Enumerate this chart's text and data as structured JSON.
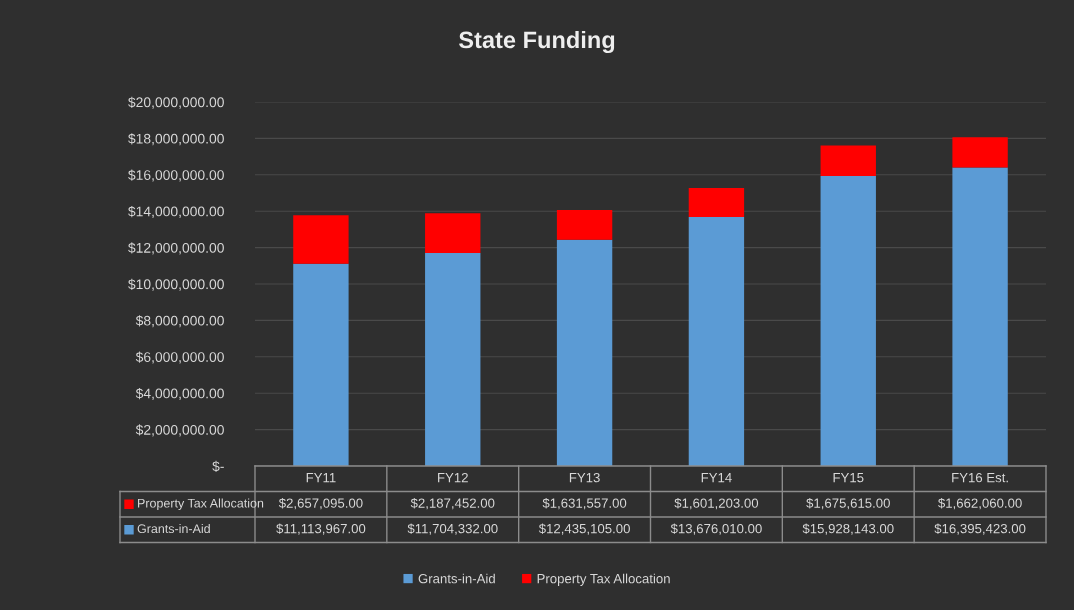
{
  "chart_data": {
    "type": "bar",
    "title": "State Funding",
    "stacked": true,
    "categories": [
      "FY11",
      "FY12",
      "FY13",
      "FY14",
      "FY15",
      "FY16 Est."
    ],
    "series": [
      {
        "name": "Grants-in-Aid",
        "color": "#5b9bd5",
        "values": [
          11113967.0,
          11704332.0,
          12435105.0,
          13676010.0,
          15928143.0,
          16395423.0
        ],
        "value_labels": [
          "$11,113,967.00",
          "$11,704,332.00",
          "$12,435,105.00",
          "$13,676,010.00",
          "$15,928,143.00",
          "$16,395,423.00"
        ]
      },
      {
        "name": "Property Tax Allocation",
        "color": "#ff0000",
        "values": [
          2657095.0,
          2187452.0,
          1631557.0,
          1601203.0,
          1675615.0,
          1662060.0
        ],
        "value_labels": [
          "$2,657,095.00",
          "$2,187,452.00",
          "$1,631,557.00",
          "$1,601,203.00",
          "$1,675,615.00",
          "$1,662,060.00"
        ]
      }
    ],
    "ylim": [
      0,
      20000000
    ],
    "yticks": [
      {
        "value": 0,
        "label": "$-"
      },
      {
        "value": 2000000,
        "label": "$2,000,000.00"
      },
      {
        "value": 4000000,
        "label": "$4,000,000.00"
      },
      {
        "value": 6000000,
        "label": "$6,000,000.00"
      },
      {
        "value": 8000000,
        "label": "$8,000,000.00"
      },
      {
        "value": 10000000,
        "label": "$10,000,000.00"
      },
      {
        "value": 12000000,
        "label": "$12,000,000.00"
      },
      {
        "value": 14000000,
        "label": "$14,000,000.00"
      },
      {
        "value": 16000000,
        "label": "$16,000,000.00"
      },
      {
        "value": 18000000,
        "label": "$18,000,000.00"
      },
      {
        "value": 20000000,
        "label": "$20,000,000.00"
      }
    ],
    "grid": "y",
    "legend": "bottom"
  }
}
